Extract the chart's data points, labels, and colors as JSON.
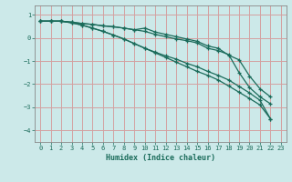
{
  "xlabel": "Humidex (Indice chaleur)",
  "xlim": [
    -0.5,
    23.5
  ],
  "ylim": [
    -4.5,
    1.4
  ],
  "yticks": [
    1,
    0,
    -1,
    -2,
    -3,
    -4
  ],
  "xticks": [
    0,
    1,
    2,
    3,
    4,
    5,
    6,
    7,
    8,
    9,
    10,
    11,
    12,
    13,
    14,
    15,
    16,
    17,
    18,
    19,
    20,
    21,
    22,
    23
  ],
  "bg_color": "#cce9e9",
  "grid_color": "#d4a0a0",
  "line_color": "#1a6b5a",
  "lines": [
    [
      0.72,
      0.72,
      0.72,
      0.68,
      0.62,
      0.58,
      0.52,
      0.48,
      0.42,
      0.35,
      0.42,
      0.25,
      0.15,
      0.05,
      -0.05,
      -0.15,
      -0.35,
      -0.45,
      -0.75,
      -0.95,
      -1.65,
      -2.2,
      -2.55
    ],
    [
      0.72,
      0.72,
      0.72,
      0.68,
      0.62,
      0.58,
      0.52,
      0.48,
      0.42,
      0.35,
      0.28,
      0.15,
      0.05,
      -0.05,
      -0.12,
      -0.22,
      -0.45,
      -0.55,
      -0.72,
      -1.5,
      -2.15,
      -2.55,
      -2.85
    ],
    [
      0.72,
      0.72,
      0.72,
      0.65,
      0.55,
      0.42,
      0.28,
      0.12,
      -0.05,
      -0.25,
      -0.45,
      -0.62,
      -0.78,
      -0.92,
      -1.1,
      -1.25,
      -1.45,
      -1.62,
      -1.82,
      -2.1,
      -2.38,
      -2.7,
      -3.5
    ],
    [
      0.72,
      0.72,
      0.72,
      0.65,
      0.55,
      0.42,
      0.28,
      0.12,
      -0.05,
      -0.25,
      -0.45,
      -0.65,
      -0.85,
      -1.05,
      -1.25,
      -1.45,
      -1.62,
      -1.82,
      -2.08,
      -2.35,
      -2.62,
      -2.9,
      -3.5
    ]
  ]
}
